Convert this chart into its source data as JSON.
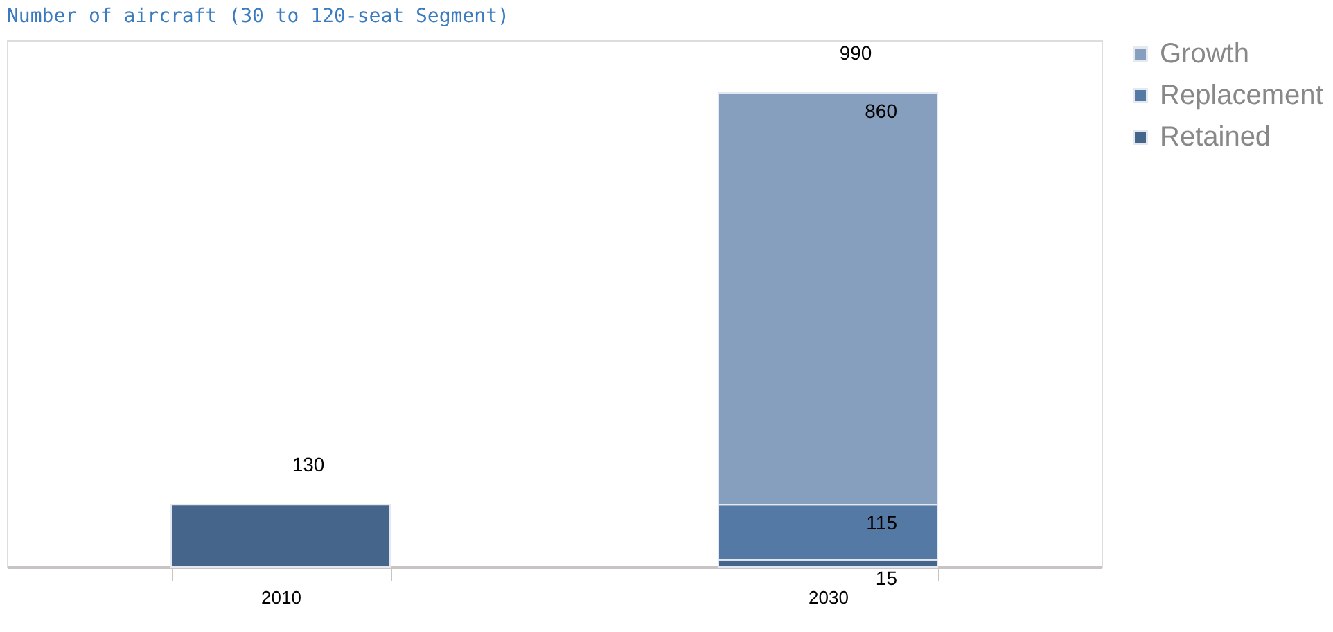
{
  "chart_data": {
    "type": "bar",
    "title": "Number of aircraft (30 to 120-seat Segment)",
    "categories": [
      "2010",
      "2030"
    ],
    "stacked": true,
    "series": [
      {
        "name": "Retained",
        "color": "#46658a",
        "values": [
          130,
          15
        ],
        "value_labels": [
          null,
          "15"
        ]
      },
      {
        "name": "Replacement",
        "color": "#5479a4",
        "values": [
          null,
          115
        ],
        "value_labels": [
          null,
          "115"
        ]
      },
      {
        "name": "Growth",
        "color": "#869fbe",
        "values": [
          null,
          860
        ],
        "value_labels": [
          null,
          "860"
        ]
      }
    ],
    "totals": [
      "130",
      "990"
    ],
    "ylim": [
      0,
      1100
    ],
    "tick_labels": "x",
    "grid": false,
    "legend": "right"
  }
}
